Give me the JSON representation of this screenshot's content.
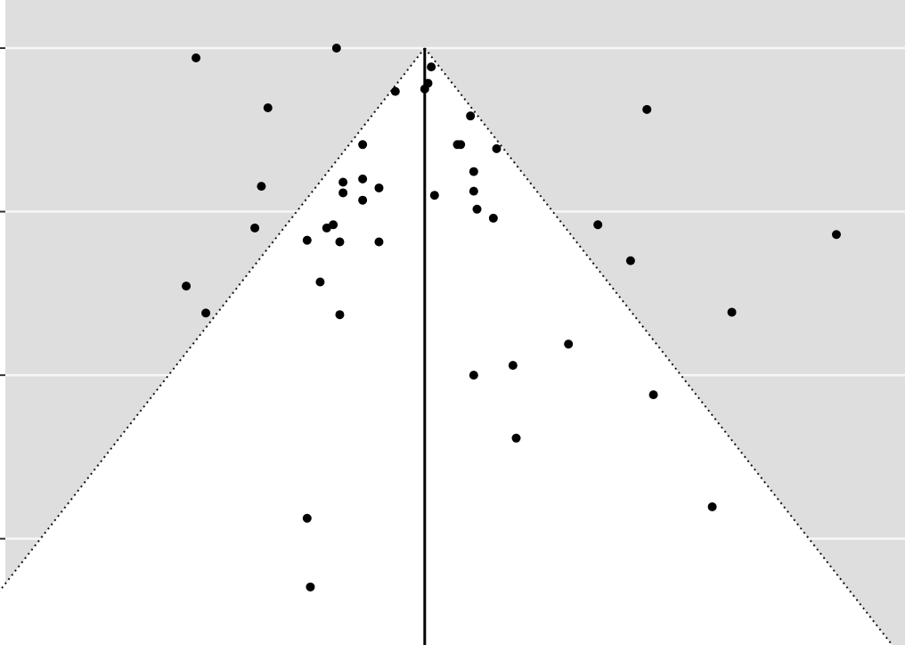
{
  "chart_data": {
    "type": "scatter",
    "subtype": "funnel-plot",
    "title": "",
    "xlabel": "",
    "ylabel": "",
    "xlim": [
      -1.3,
      1.47
    ],
    "ylim": [
      0.73,
      0.0
    ],
    "y_inverted": true,
    "y_gridlines": [
      0.0,
      0.2,
      0.4,
      0.6
    ],
    "grid": true,
    "legend": "none",
    "summary_effect": 0.0,
    "funnel_ci_multiplier": 1.96,
    "colors": {
      "panel_background": "#dedede",
      "funnel_fill": "#ffffff",
      "gridline": "#f7f7f7",
      "points": "#000000",
      "reference_line": "#000000"
    },
    "points": [
      {
        "x": -0.7,
        "y": 0.012
      },
      {
        "x": -0.27,
        "y": 0.0
      },
      {
        "x": 0.02,
        "y": 0.023
      },
      {
        "x": 0.01,
        "y": 0.043
      },
      {
        "x": 0.0,
        "y": 0.05
      },
      {
        "x": -0.09,
        "y": 0.053
      },
      {
        "x": -0.48,
        "y": 0.073
      },
      {
        "x": 0.14,
        "y": 0.083
      },
      {
        "x": 0.68,
        "y": 0.075
      },
      {
        "x": -0.19,
        "y": 0.118
      },
      {
        "x": 0.1,
        "y": 0.118
      },
      {
        "x": 0.11,
        "y": 0.118
      },
      {
        "x": 0.22,
        "y": 0.123
      },
      {
        "x": 0.15,
        "y": 0.151
      },
      {
        "x": -0.5,
        "y": 0.169
      },
      {
        "x": -0.25,
        "y": 0.164
      },
      {
        "x": -0.19,
        "y": 0.16
      },
      {
        "x": -0.14,
        "y": 0.171
      },
      {
        "x": -0.25,
        "y": 0.177
      },
      {
        "x": -0.19,
        "y": 0.186
      },
      {
        "x": 0.15,
        "y": 0.175
      },
      {
        "x": 0.03,
        "y": 0.18
      },
      {
        "x": 0.16,
        "y": 0.197
      },
      {
        "x": 0.21,
        "y": 0.208
      },
      {
        "x": -0.52,
        "y": 0.22
      },
      {
        "x": -0.3,
        "y": 0.22
      },
      {
        "x": -0.28,
        "y": 0.216
      },
      {
        "x": -0.36,
        "y": 0.235
      },
      {
        "x": -0.26,
        "y": 0.237
      },
      {
        "x": -0.14,
        "y": 0.237
      },
      {
        "x": 0.53,
        "y": 0.216
      },
      {
        "x": 0.63,
        "y": 0.26
      },
      {
        "x": 1.26,
        "y": 0.228
      },
      {
        "x": -0.73,
        "y": 0.291
      },
      {
        "x": -0.32,
        "y": 0.286
      },
      {
        "x": -0.67,
        "y": 0.324
      },
      {
        "x": -0.26,
        "y": 0.326
      },
      {
        "x": 0.94,
        "y": 0.323
      },
      {
        "x": 0.44,
        "y": 0.362
      },
      {
        "x": 0.27,
        "y": 0.388
      },
      {
        "x": 0.15,
        "y": 0.4
      },
      {
        "x": 0.7,
        "y": 0.424
      },
      {
        "x": 0.28,
        "y": 0.477
      },
      {
        "x": 0.88,
        "y": 0.561
      },
      {
        "x": -0.36,
        "y": 0.575
      },
      {
        "x": -0.35,
        "y": 0.659
      }
    ]
  }
}
